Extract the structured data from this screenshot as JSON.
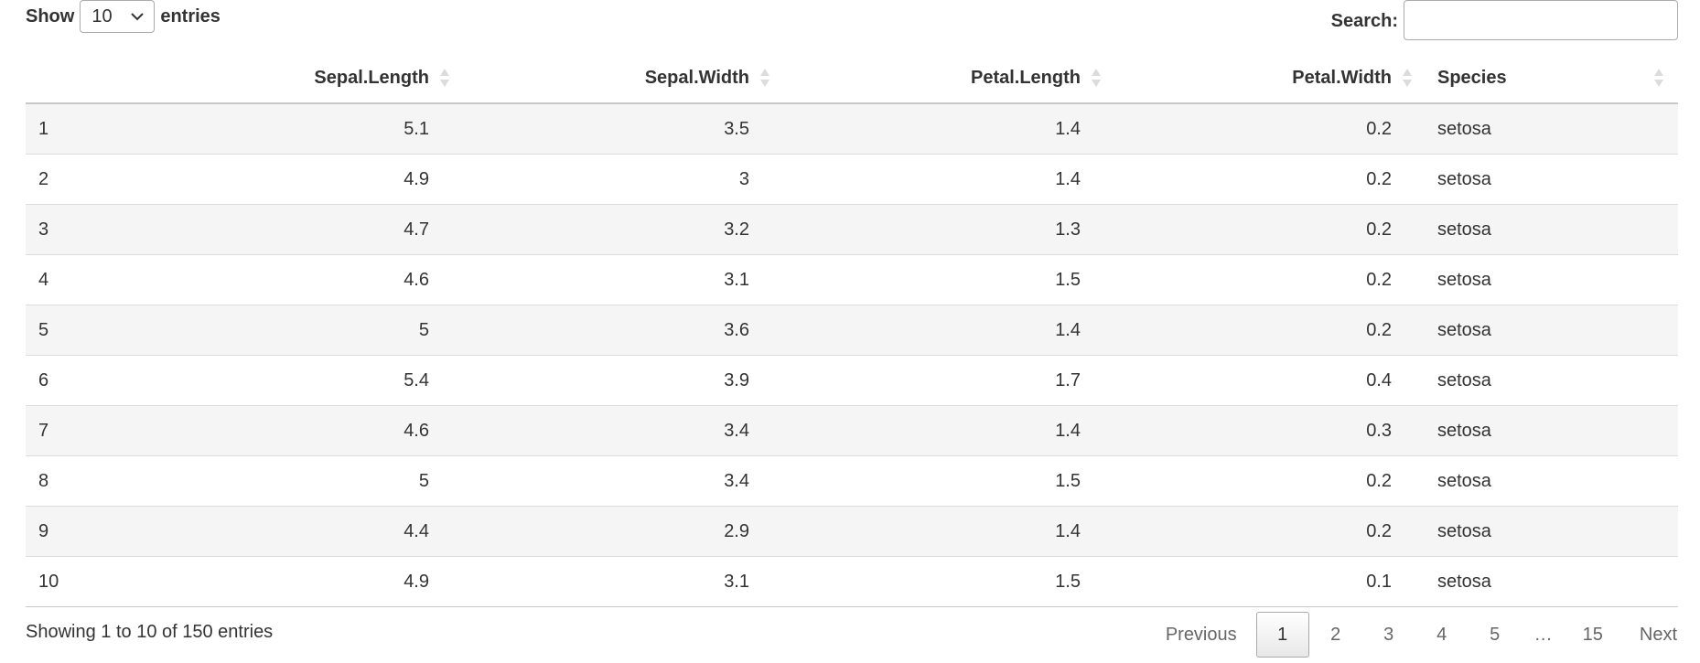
{
  "controls": {
    "show_label": "Show",
    "page_length": "10",
    "entries_label": "entries",
    "search_label": "Search:",
    "search_value": ""
  },
  "table": {
    "columns": [
      {
        "label": "",
        "align": "txt"
      },
      {
        "label": "Sepal.Length",
        "align": "num"
      },
      {
        "label": "Sepal.Width",
        "align": "num"
      },
      {
        "label": "Petal.Length",
        "align": "num"
      },
      {
        "label": "Petal.Width",
        "align": "num"
      },
      {
        "label": "Species",
        "align": "txt"
      }
    ],
    "rows": [
      [
        "1",
        "5.1",
        "3.5",
        "1.4",
        "0.2",
        "setosa"
      ],
      [
        "2",
        "4.9",
        "3",
        "1.4",
        "0.2",
        "setosa"
      ],
      [
        "3",
        "4.7",
        "3.2",
        "1.3",
        "0.2",
        "setosa"
      ],
      [
        "4",
        "4.6",
        "3.1",
        "1.5",
        "0.2",
        "setosa"
      ],
      [
        "5",
        "5",
        "3.6",
        "1.4",
        "0.2",
        "setosa"
      ],
      [
        "6",
        "5.4",
        "3.9",
        "1.7",
        "0.4",
        "setosa"
      ],
      [
        "7",
        "4.6",
        "3.4",
        "1.4",
        "0.3",
        "setosa"
      ],
      [
        "8",
        "5",
        "3.4",
        "1.5",
        "0.2",
        "setosa"
      ],
      [
        "9",
        "4.4",
        "2.9",
        "1.4",
        "0.2",
        "setosa"
      ],
      [
        "10",
        "4.9",
        "3.1",
        "1.5",
        "0.1",
        "setosa"
      ]
    ]
  },
  "info": "Showing 1 to 10 of 150 entries",
  "pagination": {
    "previous": "Previous",
    "next": "Next",
    "current": "1",
    "pages": [
      "1",
      "2",
      "3",
      "4",
      "5",
      "…",
      "15"
    ]
  },
  "colors": {
    "stripe": "#f5f5f5",
    "border": "#dddddd",
    "text": "#333333"
  }
}
